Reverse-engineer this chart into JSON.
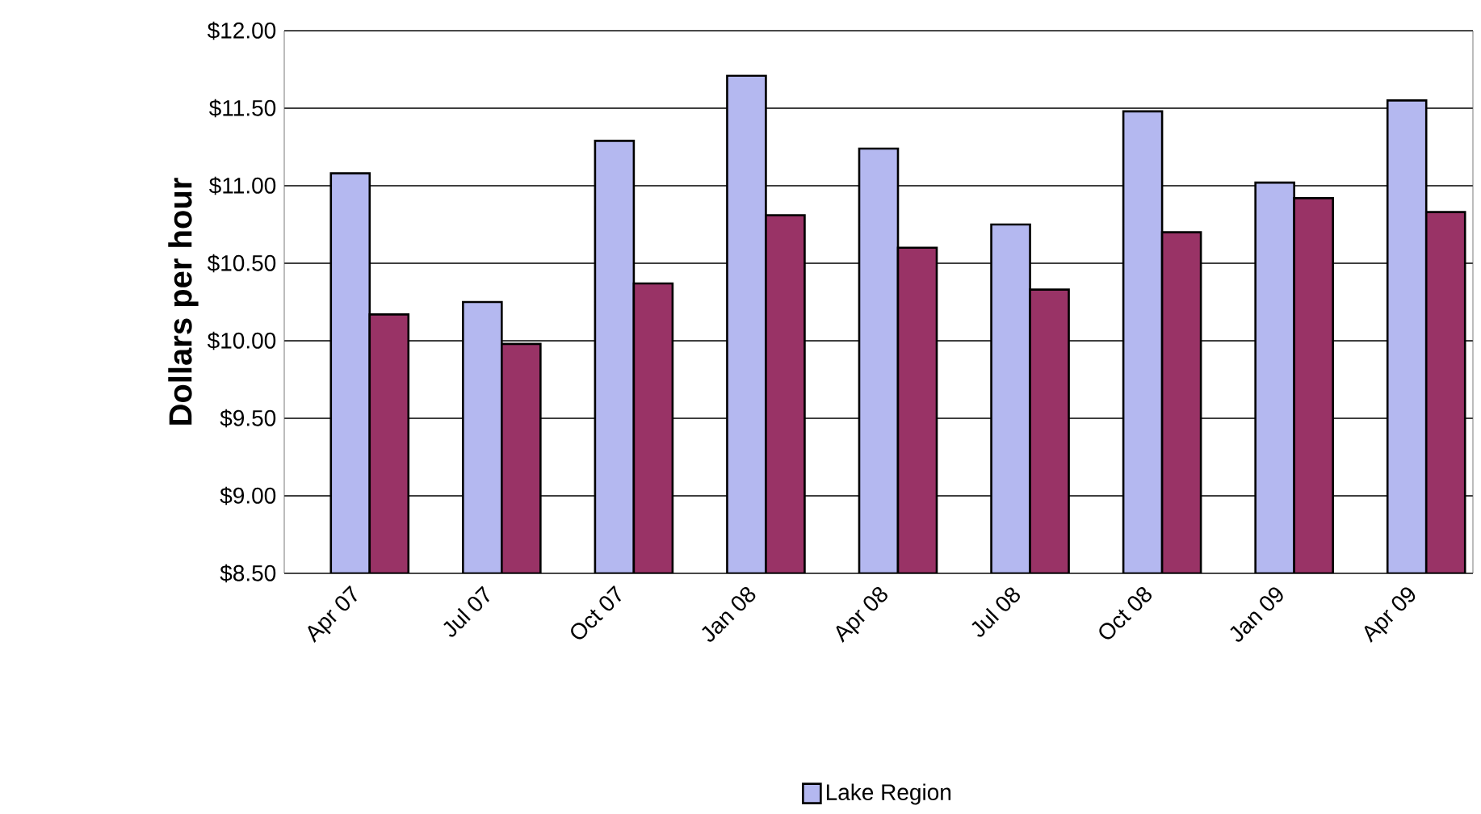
{
  "chart_data": {
    "type": "bar",
    "ylabel": "Dollars per hour",
    "categories": [
      "Apr 07",
      "Jul 07",
      "Oct 07",
      "Jan 08",
      "Apr 08",
      "Jul 08",
      "Oct 08",
      "Jan 09",
      "Apr 09"
    ],
    "series": [
      {
        "name": "Lake Region",
        "color": "#b4b8f0",
        "values": [
          11.08,
          10.25,
          11.29,
          11.71,
          11.24,
          10.75,
          11.48,
          11.02,
          11.55
        ]
      },
      {
        "color": "#993366",
        "values": [
          10.17,
          9.98,
          10.37,
          10.81,
          10.6,
          10.33,
          10.7,
          10.92,
          10.83
        ]
      }
    ],
    "ylim": [
      8.5,
      12
    ],
    "yticks": [
      {
        "value": 8.5,
        "label": "$8.50"
      },
      {
        "value": 9,
        "label": "$9.00"
      },
      {
        "value": 9.5,
        "label": "$9.50"
      },
      {
        "value": 10,
        "label": "$10.00"
      },
      {
        "value": 10.5,
        "label": "$10.50"
      },
      {
        "value": 11,
        "label": "$11.00"
      },
      {
        "value": 11.5,
        "label": "$11.50"
      },
      {
        "value": 12,
        "label": "$12.00"
      }
    ],
    "grid": "y",
    "legend": "bottom"
  }
}
